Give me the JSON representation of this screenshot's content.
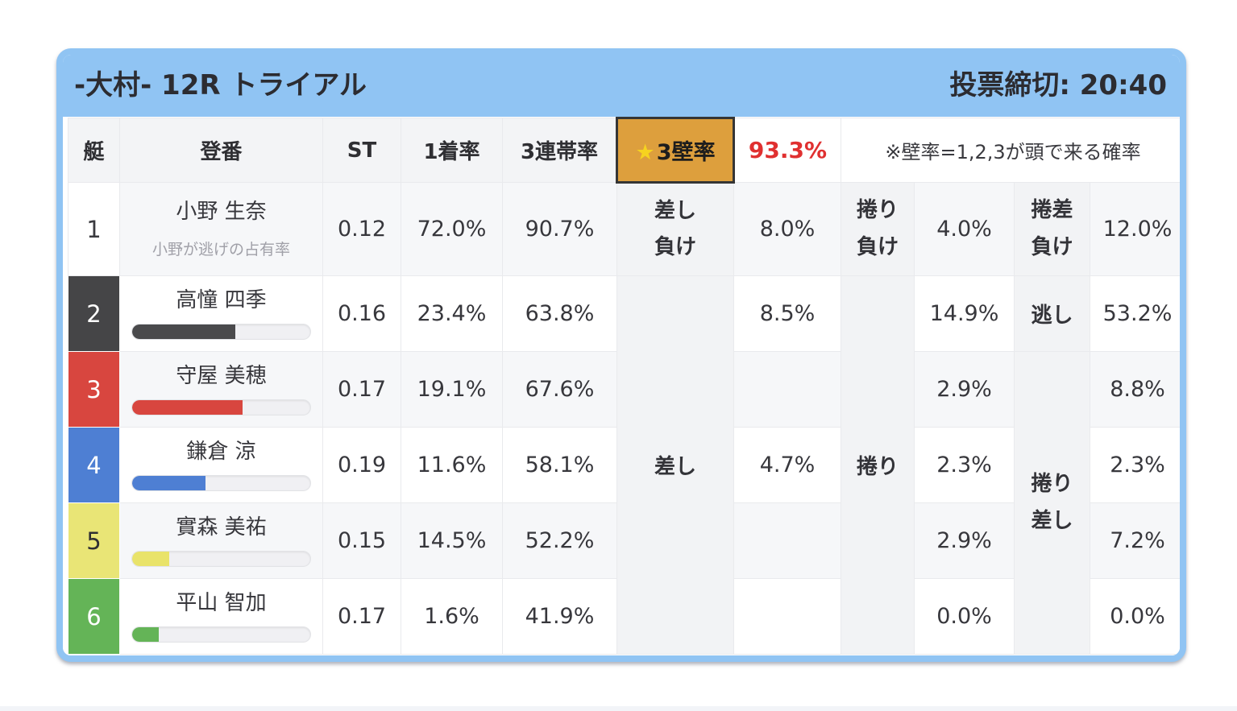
{
  "header": {
    "title": "-大村- 12R トライアル",
    "deadline": "投票締切: 20:40"
  },
  "columns": {
    "boat": "艇",
    "racer": "登番",
    "st": "ST",
    "win_rate": "1着率",
    "top3_rate": "3連帯率"
  },
  "wall": {
    "star": "★",
    "name": "3壁率",
    "value": "93.3%",
    "note": "※壁率=1,2,3が頭で来る確率"
  },
  "labels": {
    "row1": {
      "sashi_make": [
        "差し",
        "負け"
      ],
      "makuri_make": [
        "捲り",
        "負け"
      ],
      "makurizashi_make": [
        "捲差",
        "負け"
      ]
    },
    "merged": {
      "sashi": "差し",
      "makuri": "捲り",
      "nigashi": "逃し",
      "makuri_sashi": [
        "捲り",
        "差し"
      ]
    }
  },
  "rows": [
    {
      "boat": "1",
      "name": "小野 生奈",
      "subtext": "小野が逃げの占有率",
      "st": "0.12",
      "win": "72.0%",
      "top3": "90.7%",
      "v1": "8.0%",
      "v2": "4.0%",
      "v3": "12.0%"
    },
    {
      "boat": "2",
      "name": "高憧 四季",
      "bar_percent": 58,
      "st": "0.16",
      "win": "23.4%",
      "top3": "63.8%",
      "v1": "8.5%",
      "v2": "14.9%",
      "v3": "53.2%"
    },
    {
      "boat": "3",
      "name": "守屋 美穂",
      "bar_percent": 62,
      "st": "0.17",
      "win": "19.1%",
      "top3": "67.6%",
      "v1": "",
      "v2": "2.9%",
      "v3": "8.8%"
    },
    {
      "boat": "4",
      "name": "鎌倉 涼",
      "bar_percent": 41,
      "st": "0.19",
      "win": "11.6%",
      "top3": "58.1%",
      "v1": "4.7%",
      "v2": "2.3%",
      "v3": "2.3%"
    },
    {
      "boat": "5",
      "name": "實森 美祐",
      "bar_percent": 21,
      "st": "0.15",
      "win": "14.5%",
      "top3": "52.2%",
      "v1": "",
      "v2": "2.9%",
      "v3": "7.2%"
    },
    {
      "boat": "6",
      "name": "平山 智加",
      "bar_percent": 15,
      "st": "0.17",
      "win": "1.6%",
      "top3": "41.9%",
      "v1": "",
      "v2": "0.0%",
      "v3": "0.0%"
    }
  ],
  "colors": {
    "card_accent_blue": "#90c4f3",
    "wall_cell_orange": "#dd9f3d",
    "wall_value_red": "#e03030",
    "boat_1": "#ffffff",
    "boat_2": "#454547",
    "boat_3": "#d8463f",
    "boat_4": "#4e7fd3",
    "boat_5": "#e9e576",
    "boat_6": "#64b457"
  }
}
